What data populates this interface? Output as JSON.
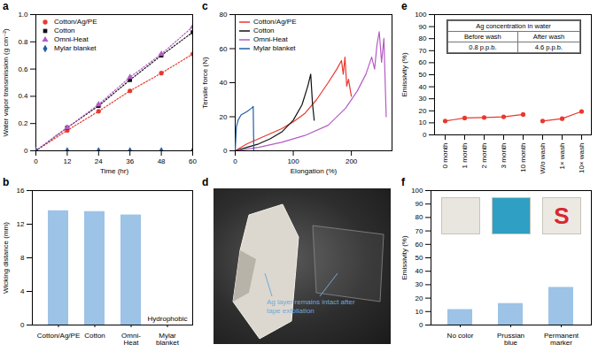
{
  "chart_data": [
    {
      "panel": "a",
      "type": "line",
      "xlabel": "Time (hr)",
      "ylabel": "Water vapor transmission (g cm⁻²)",
      "x": [
        0,
        12,
        24,
        36,
        48,
        60
      ],
      "series": [
        {
          "name": "Cotton/Ag/PE",
          "color": "#e8392f",
          "marker": "circle",
          "line_style": "dotted",
          "values": [
            0,
            0.15,
            0.29,
            0.44,
            0.57,
            0.71
          ]
        },
        {
          "name": "Cotton",
          "color": "#111111",
          "marker": "square",
          "line_style": "dotted",
          "values": [
            0,
            0.17,
            0.33,
            0.52,
            0.7,
            0.87
          ]
        },
        {
          "name": "Omni-Heat",
          "color": "#b45cc4",
          "marker": "triangle",
          "line_style": "dotted",
          "values": [
            0,
            0.17,
            0.34,
            0.54,
            0.71,
            0.91
          ]
        },
        {
          "name": "Mylar blanket",
          "color": "#1f5fa8",
          "marker": "diamond",
          "line_style": "dotted",
          "values": [
            0,
            0,
            0,
            0,
            0,
            0
          ]
        }
      ],
      "xlim": [
        0,
        60
      ],
      "xticks": [
        0,
        12,
        24,
        36,
        48,
        60
      ],
      "ylim": [
        0,
        1
      ],
      "yticks": [
        0,
        0.2,
        0.4,
        0.6,
        0.8,
        {
          "value": 1,
          "label": "1.0"
        }
      ],
      "legend": "upper left"
    },
    {
      "panel": "b",
      "type": "bar",
      "ylabel": "Wicking distance (mm)",
      "categories": [
        "Cotton/Ag/PE",
        "Cotton",
        "Omni-Heat",
        "Mylar blanket"
      ],
      "values": [
        13.6,
        13.5,
        13.1,
        0
      ],
      "color": "#9dc3e6",
      "ylim": [
        0,
        16
      ],
      "yticks": [
        0,
        4,
        8,
        12,
        16
      ],
      "annotations": [
        {
          "text": "Hydrophobic",
          "category": "Mylar blanket"
        }
      ]
    },
    {
      "panel": "c",
      "type": "line",
      "xlabel": "Elongation (%)",
      "ylabel": "Tensile force (N)",
      "series": [
        {
          "name": "Cotton/Ag/PE",
          "color": "#e8392f",
          "x": [
            0,
            20,
            40,
            60,
            80,
            100,
            120,
            140,
            160,
            175,
            183,
            186,
            189,
            192,
            195,
            200
          ],
          "values": [
            0,
            4,
            7,
            10,
            13,
            17,
            22,
            30,
            40,
            48,
            53,
            45,
            55,
            38,
            42,
            32
          ]
        },
        {
          "name": "Cotton",
          "color": "#111111",
          "x": [
            0,
            20,
            40,
            60,
            80,
            100,
            115,
            125,
            130,
            133,
            136
          ],
          "values": [
            0,
            2,
            4,
            7,
            11,
            18,
            27,
            38,
            45,
            28,
            18
          ]
        },
        {
          "name": "Omni-Heat",
          "color": "#b45cc4",
          "x": [
            0,
            40,
            80,
            120,
            160,
            190,
            210,
            225,
            235,
            240,
            244,
            248,
            252,
            256,
            260
          ],
          "values": [
            0,
            2,
            5,
            9,
            15,
            25,
            35,
            45,
            55,
            48,
            62,
            70,
            52,
            66,
            20
          ]
        },
        {
          "name": "Mylar blanket",
          "color": "#1f5fa8",
          "x": [
            0,
            2,
            5,
            10,
            20,
            28,
            31,
            32
          ],
          "values": [
            0,
            14,
            18,
            21,
            23,
            25,
            26,
            0
          ]
        }
      ],
      "xlim": [
        0,
        270
      ],
      "xticks": [
        0,
        100,
        200
      ],
      "ylim": [
        0,
        80
      ],
      "yticks": [
        0,
        20,
        40,
        60,
        80
      ],
      "legend": "upper left"
    },
    {
      "panel": "e",
      "type": "line",
      "ylabel": "Emissivity (%)",
      "categories": [
        "0 month",
        "1 month",
        "2 month",
        "3 month",
        "10 month",
        "W/o wash",
        "1× wash",
        "10× wash"
      ],
      "series": [
        {
          "color": "#e8392f",
          "marker": "circle",
          "values": [
            11.5,
            14,
            14.5,
            15,
            17,
            null,
            null,
            null
          ]
        },
        {
          "color": "#e8392f",
          "marker": "circle",
          "values": [
            null,
            null,
            null,
            null,
            null,
            11.5,
            13.5,
            19.5
          ]
        }
      ],
      "ylim": [
        0,
        100
      ],
      "yticks": [
        0,
        10,
        20,
        30,
        40,
        50,
        60,
        70,
        80,
        90,
        100
      ],
      "table": {
        "title": "Ag concentration in water",
        "columns": [
          "Before wash",
          "After wash"
        ],
        "rows": [
          [
            "0.8 p.p.b.",
            "4.6 p.p.b."
          ]
        ]
      }
    },
    {
      "panel": "f",
      "type": "bar",
      "ylabel": "Emissivity (%)",
      "categories": [
        "No color",
        "Prussian blue",
        "Permanent marker"
      ],
      "values": [
        11.5,
        16,
        28
      ],
      "color": "#9dc3e6",
      "ylim": [
        0,
        100
      ],
      "yticks": [
        0,
        10,
        20,
        30,
        40,
        50,
        60,
        70,
        80,
        90,
        100
      ],
      "image_texts": [
        null,
        null,
        "S"
      ]
    }
  ],
  "image": {
    "panel": "d",
    "annotation": "Ag layer remains intact after tape exfoliation"
  }
}
